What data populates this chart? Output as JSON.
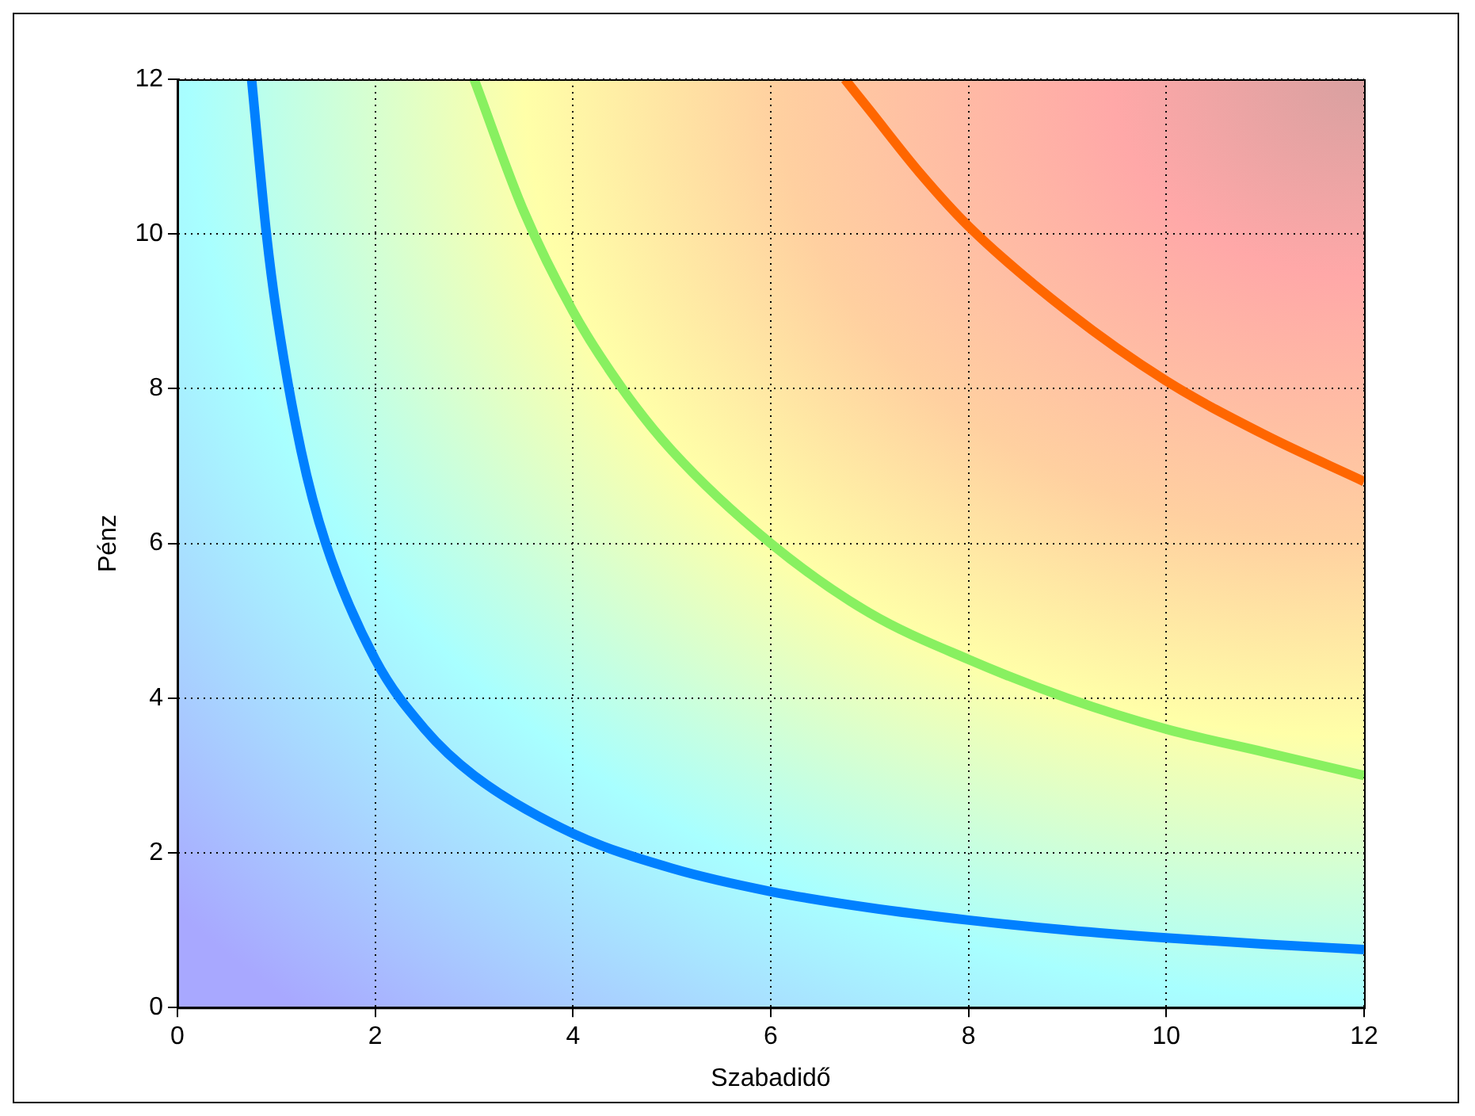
{
  "chart_data": {
    "type": "line",
    "xlabel": "Szabadidő",
    "ylabel": "Pénz",
    "xlim": [
      0,
      12
    ],
    "ylim": [
      0,
      12
    ],
    "xticks": [
      0,
      2,
      4,
      6,
      8,
      10,
      12
    ],
    "yticks": [
      0,
      2,
      4,
      6,
      8,
      10,
      12
    ],
    "grid": true,
    "legend": false,
    "marker": "none",
    "line_style": "solid",
    "series": [
      {
        "color": "#0080ff",
        "x": [
          0.75,
          0.9,
          1,
          1.25,
          1.5,
          2,
          2.5,
          3,
          4,
          5,
          6,
          7,
          8,
          9,
          10,
          11,
          12
        ],
        "values": [
          12,
          10,
          9,
          7.2,
          6,
          4.5,
          3.6,
          3,
          2.25,
          1.8,
          1.5,
          1.29,
          1.13,
          1,
          0.9,
          0.82,
          0.75
        ]
      },
      {
        "color": "#88f060",
        "x": [
          3,
          3.5,
          4,
          4.5,
          5,
          6,
          7,
          8,
          9,
          10,
          11,
          12
        ],
        "values": [
          12,
          10.3,
          9,
          8,
          7.2,
          6,
          5.1,
          4.5,
          4,
          3.6,
          3.3,
          3
        ]
      },
      {
        "color": "#ff6600",
        "x": [
          6.75,
          7,
          7.5,
          8,
          9,
          10,
          11,
          12
        ],
        "values": [
          12,
          11.6,
          10.8,
          10.1,
          9,
          8.1,
          7.4,
          6.8
        ]
      }
    ]
  }
}
